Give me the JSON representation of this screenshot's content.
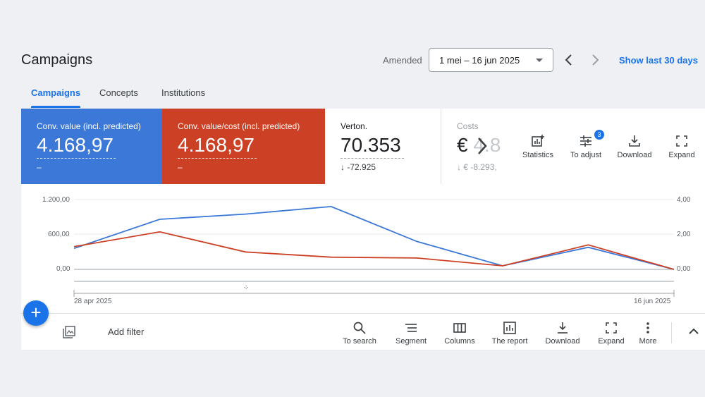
{
  "header": {
    "title": "Campaigns",
    "amended_label": "Amended",
    "date_range": "1 mei – 16 jun 2025",
    "show_last": "Show last 30 days"
  },
  "tabs": [
    {
      "label": "Campaigns",
      "active": true
    },
    {
      "label": "Concepts",
      "active": false
    },
    {
      "label": "Institutions",
      "active": false
    }
  ],
  "metrics": [
    {
      "label": "Conv. value (incl. predicted)",
      "value": "4.168,97",
      "sub": "–",
      "color": "#3c78d8"
    },
    {
      "label": "Conv. value/cost (incl. predicted)",
      "value": "4.168,97",
      "sub": "–",
      "color": "#cc4125"
    },
    {
      "label": "Verton.",
      "value": "70.353",
      "sub": "-72.925"
    },
    {
      "label": "Costs",
      "value_prefix": "€",
      "value_faded": "4.8",
      "sub": "€ -8.293,"
    }
  ],
  "metric_tools": [
    {
      "label": "Statistics",
      "icon": "statistics-icon"
    },
    {
      "label": "To adjust",
      "icon": "adjust-icon",
      "badge": "3"
    },
    {
      "label": "Download",
      "icon": "download-icon"
    },
    {
      "label": "Expand",
      "icon": "expand-icon"
    }
  ],
  "chart_data": {
    "type": "line",
    "x": [
      "28 apr 2025",
      "",
      "",
      "",
      "",
      "",
      "",
      "16 jun 2025"
    ],
    "series": [
      {
        "color": "#3c78d8",
        "axis": "left",
        "values": [
          360,
          860,
          950,
          1080,
          480,
          60,
          380,
          0
        ]
      },
      {
        "color": "#cc4125",
        "axis": "right",
        "values": [
          1.3,
          2.15,
          1.0,
          0.7,
          0.65,
          0.2,
          1.4,
          0.0
        ]
      }
    ],
    "y_left": {
      "ticks": [
        "1.200,00",
        "600,00",
        "0,00"
      ],
      "range": [
        0,
        1200
      ]
    },
    "y_right": {
      "ticks": [
        "4,00",
        "2,00",
        "0,00"
      ],
      "range": [
        0,
        4
      ]
    },
    "range_start": "28 apr 2025",
    "range_end": "16 jun 2025",
    "grid": true
  },
  "toolbar": {
    "add_filter": "Add filter",
    "items": [
      {
        "label": "To search",
        "icon": "search-icon"
      },
      {
        "label": "Segment",
        "icon": "segment-icon"
      },
      {
        "label": "Columns",
        "icon": "columns-icon"
      },
      {
        "label": "The report",
        "icon": "report-icon"
      },
      {
        "label": "Download",
        "icon": "download-icon"
      },
      {
        "label": "Expand",
        "icon": "expand-icon"
      },
      {
        "label": "More",
        "icon": "more-vert-icon"
      }
    ]
  }
}
